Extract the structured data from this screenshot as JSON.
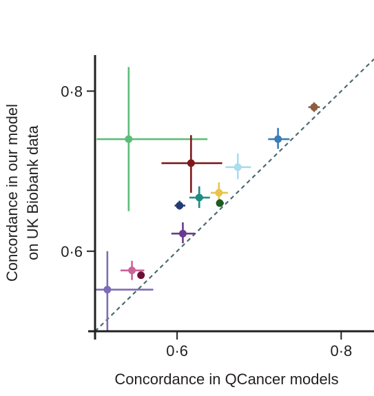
{
  "chart_data": {
    "type": "scatter",
    "title": "",
    "xlabel": "Concordance in QCancer models",
    "ylabel": [
      "Concordance in our model",
      "on UK Biobank data"
    ],
    "xlim": [
      0.5,
      0.84
    ],
    "ylim": [
      0.5,
      0.845
    ],
    "xticks": [
      {
        "value": 0.6,
        "label": "0·6"
      },
      {
        "value": 0.8,
        "label": "0·8"
      }
    ],
    "yticks": [
      {
        "value": 0.6,
        "label": "0·6"
      },
      {
        "value": 0.8,
        "label": "0·8"
      }
    ],
    "grid": false,
    "legend": "none",
    "reference_line": {
      "type": "identity",
      "style": "dashed",
      "color": "#4a6a6e"
    },
    "points": [
      {
        "x": 0.541,
        "y": 0.74,
        "x_low": 0.502,
        "x_high": 0.637,
        "y_low": 0.65,
        "y_high": 0.83,
        "color": "#5cbd77"
      },
      {
        "x": 0.617,
        "y": 0.71,
        "x_low": 0.581,
        "x_high": 0.655,
        "y_low": 0.673,
        "y_high": 0.745,
        "color": "#7f1819"
      },
      {
        "x": 0.723,
        "y": 0.74,
        "x_low": 0.711,
        "x_high": 0.737,
        "y_low": 0.728,
        "y_high": 0.754,
        "color": "#3b7db5"
      },
      {
        "x": 0.767,
        "y": 0.78,
        "x_low": 0.76,
        "x_high": 0.774,
        "y_low": 0.774,
        "y_high": 0.786,
        "color": "#8b5e42"
      },
      {
        "x": 0.674,
        "y": 0.705,
        "x_low": 0.659,
        "x_high": 0.69,
        "y_low": 0.69,
        "y_high": 0.722,
        "color": "#a9dcee"
      },
      {
        "x": 0.651,
        "y": 0.673,
        "x_low": 0.641,
        "x_high": 0.662,
        "y_low": 0.662,
        "y_high": 0.686,
        "color": "#e8c44c"
      },
      {
        "x": 0.627,
        "y": 0.667,
        "x_low": 0.615,
        "x_high": 0.64,
        "y_low": 0.654,
        "y_high": 0.681,
        "color": "#1f8b85"
      },
      {
        "x": 0.652,
        "y": 0.66,
        "x_low": 0.648,
        "x_high": 0.657,
        "y_low": 0.656,
        "y_high": 0.665,
        "color": "#1f5a22"
      },
      {
        "x": 0.603,
        "y": 0.657,
        "x_low": 0.597,
        "x_high": 0.61,
        "y_low": 0.652,
        "y_high": 0.663,
        "color": "#243a75"
      },
      {
        "x": 0.607,
        "y": 0.622,
        "x_low": 0.593,
        "x_high": 0.622,
        "y_low": 0.61,
        "y_high": 0.636,
        "color": "#6b3a8e"
      },
      {
        "x": 0.545,
        "y": 0.576,
        "x_low": 0.531,
        "x_high": 0.56,
        "y_low": 0.564,
        "y_high": 0.588,
        "color": "#cd6296"
      },
      {
        "x": 0.556,
        "y": 0.57,
        "x_low": 0.552,
        "x_high": 0.56,
        "y_low": 0.566,
        "y_high": 0.574,
        "color": "#6e0d36"
      },
      {
        "x": 0.515,
        "y": 0.552,
        "x_low": 0.5,
        "x_high": 0.571,
        "y_low": 0.5,
        "y_high": 0.6,
        "color": "#7d6cb5"
      }
    ]
  }
}
